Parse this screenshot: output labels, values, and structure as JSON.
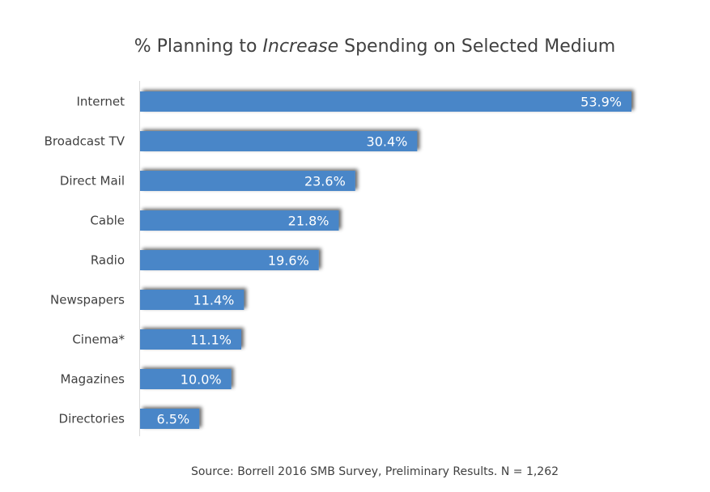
{
  "chart_data": {
    "type": "bar",
    "orientation": "horizontal",
    "title_parts": [
      {
        "text": "% Planning to ",
        "italic": false
      },
      {
        "text": "Increase",
        "italic": true
      },
      {
        "text": " Spending on Selected Medium",
        "italic": false
      }
    ],
    "title": "% Planning to Increase Spending on Selected Medium",
    "categories": [
      "Internet",
      "Broadcast TV",
      "Direct Mail",
      "Cable",
      "Radio",
      "Newspapers",
      "Cinema*",
      "Magazines",
      "Directories"
    ],
    "values": [
      53.9,
      30.4,
      23.6,
      21.8,
      19.6,
      11.4,
      11.1,
      10.0,
      6.5
    ],
    "value_labels": [
      "53.9%",
      "30.4%",
      "23.6%",
      "21.8%",
      "19.6%",
      "11.4%",
      "11.1%",
      "10.0%",
      "6.5%"
    ],
    "unit": "%",
    "xlabel": "",
    "ylabel": "",
    "xlim": [
      0,
      60
    ],
    "grid": false,
    "legend": "none",
    "bar_color": "#4a86c8",
    "source": "Source:  Borrell 2016 SMB Survey, Preliminary Results. N = 1,262"
  }
}
